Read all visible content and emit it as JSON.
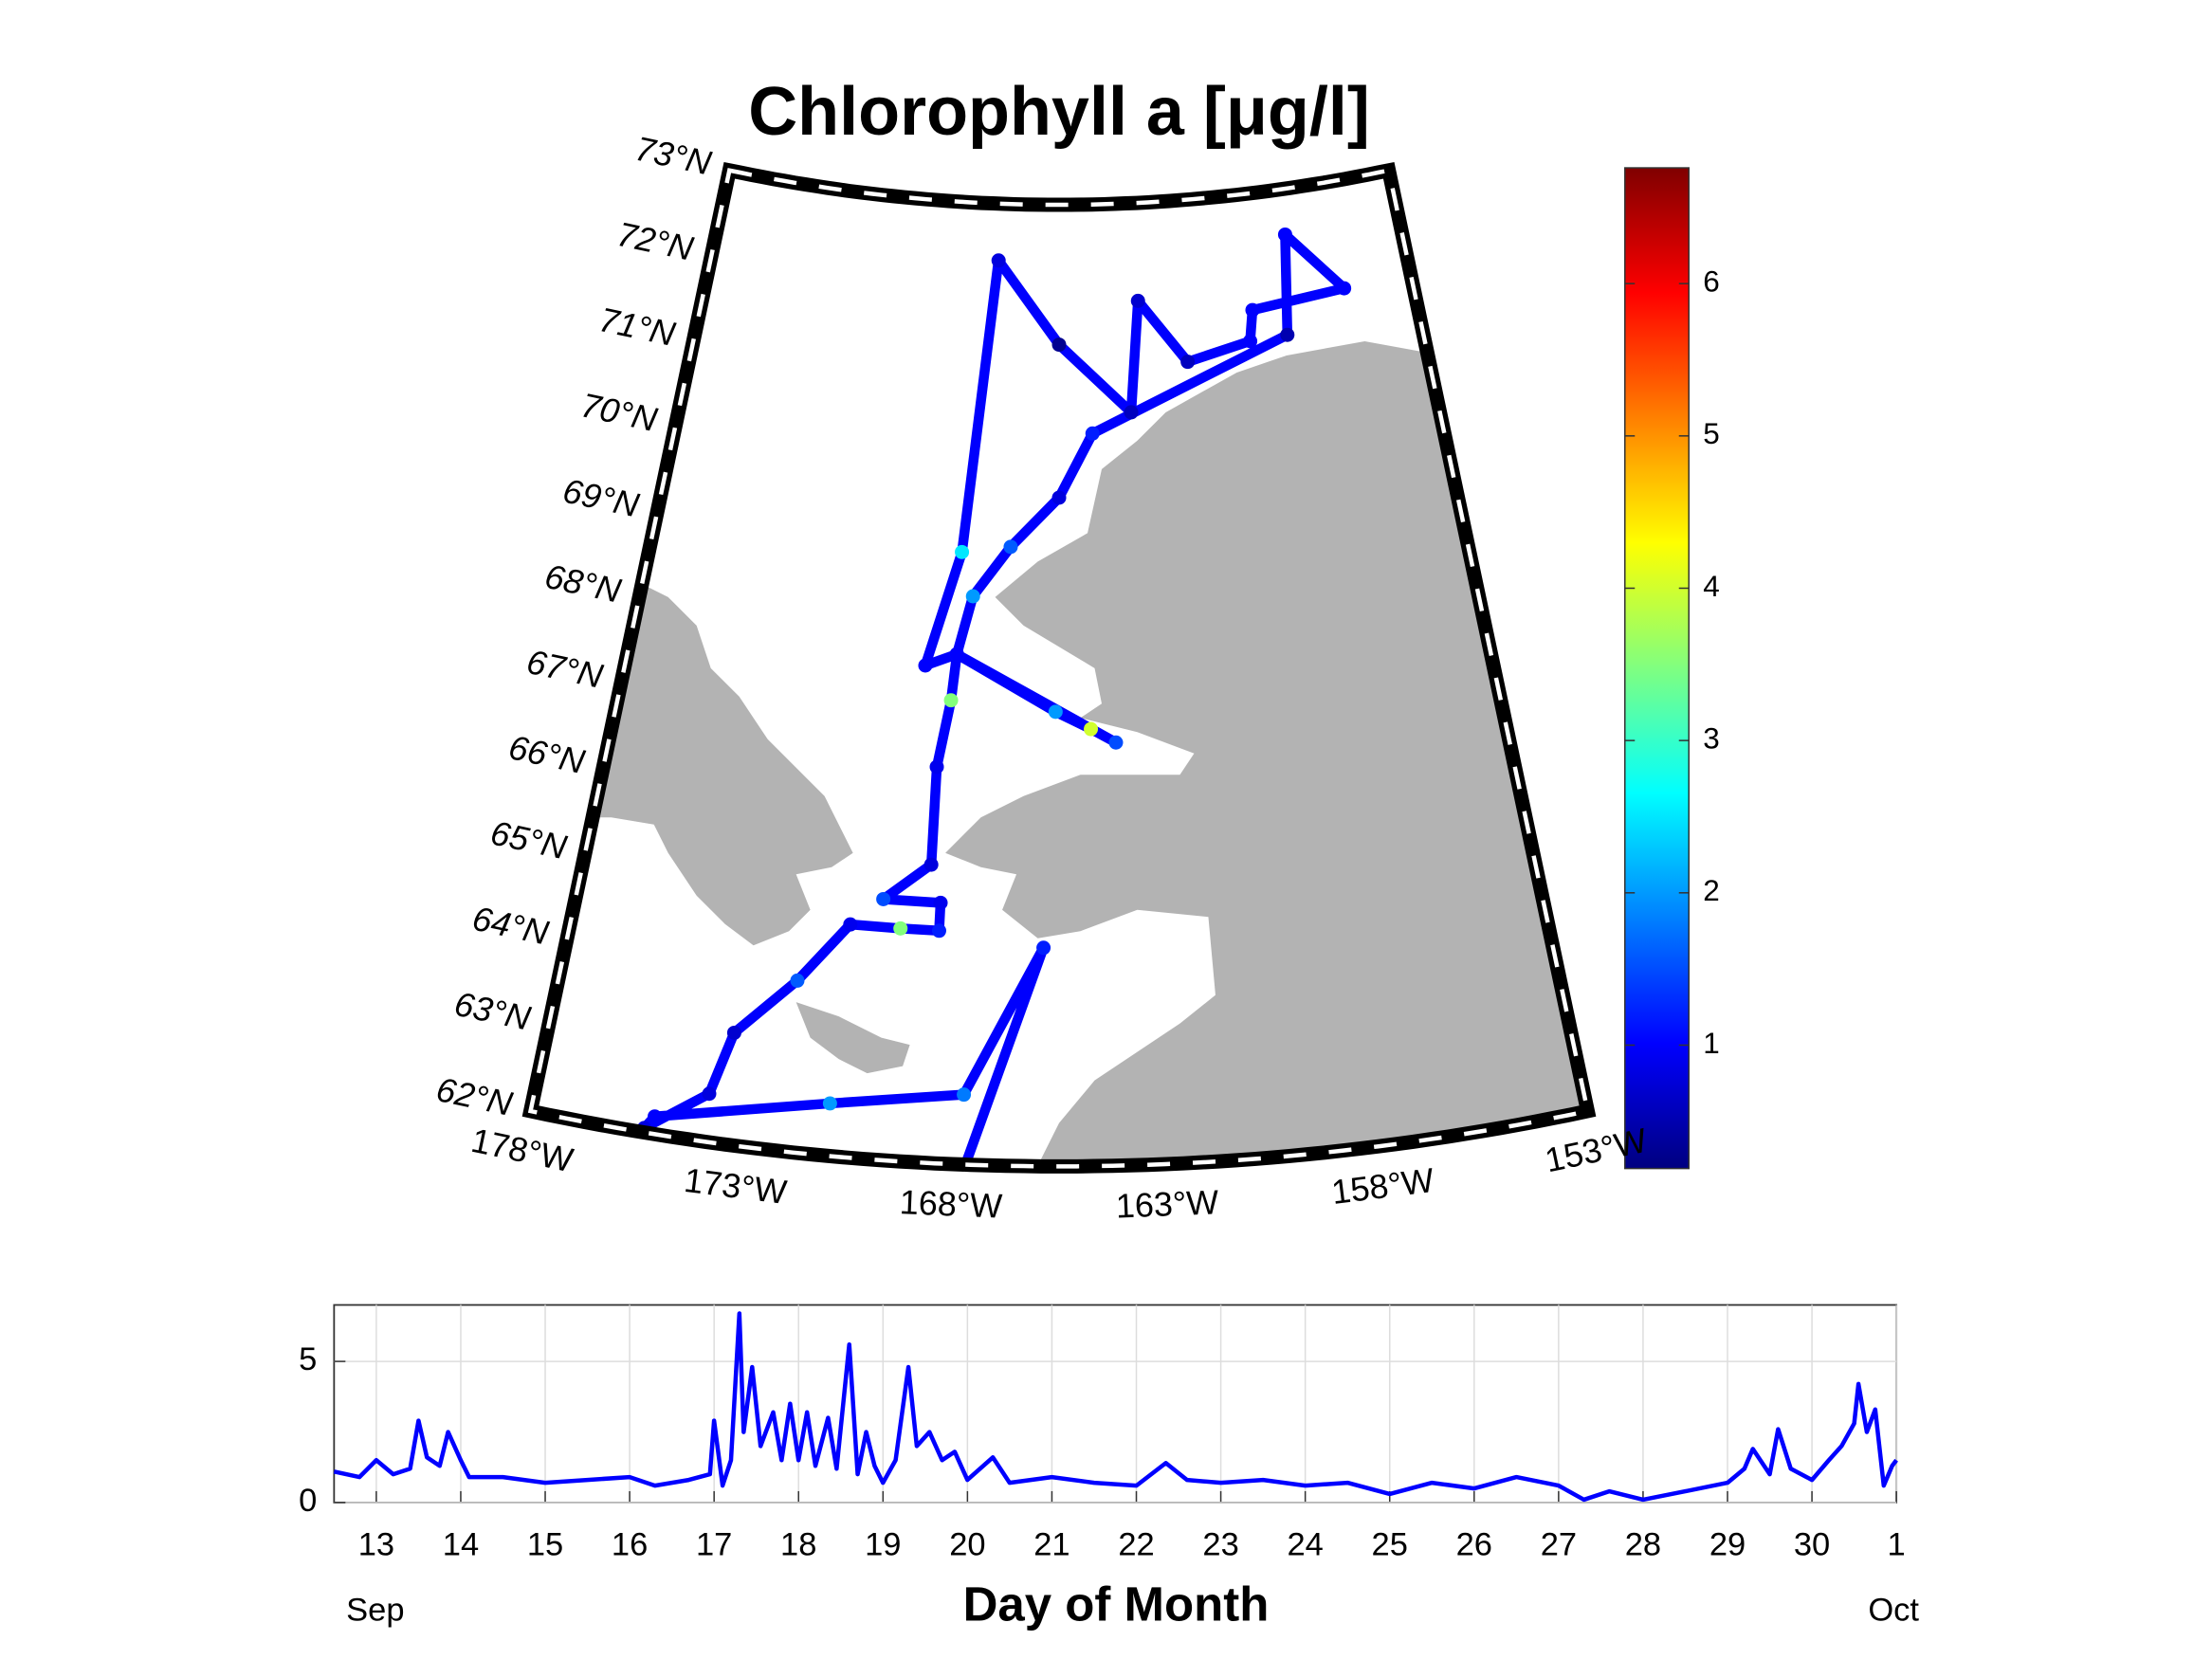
{
  "chart_data": [
    {
      "type": "map",
      "title": "Chlorophyll a [μg/l]",
      "lonlim": [
        -178,
        -153
      ],
      "latlim": [
        62,
        73
      ],
      "lonticks": [
        {
          "value": -178,
          "label": "178°W"
        },
        {
          "value": -173,
          "label": "173°W"
        },
        {
          "value": -168,
          "label": "168°W"
        },
        {
          "value": -163,
          "label": "163°W"
        },
        {
          "value": -158,
          "label": "158°W"
        },
        {
          "value": -153,
          "label": "153°W"
        }
      ],
      "latticks": [
        {
          "value": 62,
          "label": "62°N"
        },
        {
          "value": 63,
          "label": "63°N"
        },
        {
          "value": 64,
          "label": "64°N"
        },
        {
          "value": 65,
          "label": "65°N"
        },
        {
          "value": 66,
          "label": "66°N"
        },
        {
          "value": 67,
          "label": "67°N"
        },
        {
          "value": 68,
          "label": "68°N"
        },
        {
          "value": 69,
          "label": "69°N"
        },
        {
          "value": 70,
          "label": "70°N"
        },
        {
          "value": 71,
          "label": "71°N"
        },
        {
          "value": 72,
          "label": "72°N"
        },
        {
          "value": 73,
          "label": "73°N"
        }
      ],
      "land_color": "#b3b3b3",
      "track": {
        "lon": [
          -167.7,
          -165.9,
          -167.8,
          -171.0,
          -175.1,
          -175.3,
          -173.9,
          -173.5,
          -172.1,
          -170.9,
          -169.6,
          -168.6,
          -168.6,
          -170.1,
          -168.9,
          -168.9,
          -168.6,
          -168.5,
          -165.6,
          -164.6,
          -163.9,
          -168.5,
          -169.4,
          -168.5,
          -167.7,
          -165.5,
          -163.1,
          -162.7,
          -161.1,
          -158.9,
          -158.7,
          -155.4,
          -157.2,
          -157.6,
          -164.4,
          -165.5,
          -167.0,
          -168.1,
          -168.5
        ],
        "lat": [
          62.0,
          64.5,
          62.8,
          62.6,
          62.2,
          62.05,
          62.55,
          63.28,
          63.96,
          64.66,
          64.66,
          64.66,
          64.98,
          64.98,
          65.41,
          66.53,
          67.3,
          67.83,
          67.2,
          67.0,
          66.84,
          67.83,
          67.68,
          69.0,
          72.35,
          71.4,
          70.61,
          71.88,
          71.15,
          71.32,
          71.67,
          71.77,
          72.48,
          71.34,
          70.38,
          69.65,
          69.08,
          68.5,
          67.83
        ],
        "values": [
          1.0,
          1.2,
          1.8,
          2.0,
          1.0,
          0.8,
          0.8,
          0.7,
          1.6,
          0.9,
          3.5,
          1.2,
          0.9,
          1.5,
          0.8,
          0.9,
          3.5,
          1.0,
          2.0,
          4.0,
          1.5,
          1.2,
          1.0,
          2.5,
          0.8,
          0.3,
          0.6,
          0.7,
          0.6,
          1.0,
          1.0,
          1.0,
          1.0,
          0.5,
          1.2,
          0.8,
          1.6,
          2.0,
          1.0
        ]
      },
      "colormap": "jet",
      "clim": [
        0.19,
        6.76
      ],
      "colorbar_ticks": [
        1,
        2,
        3,
        4,
        5,
        6
      ]
    },
    {
      "type": "line",
      "xlabel": "Day of Month",
      "month_labels": [
        "Sep",
        "Oct"
      ],
      "x": [
        12.5,
        12.8,
        13.0,
        13.2,
        13.4,
        13.5,
        13.6,
        13.75,
        13.85,
        14.0,
        14.1,
        14.5,
        15.0,
        15.5,
        16.0,
        16.3,
        16.7,
        16.95,
        17.0,
        17.1,
        17.2,
        17.3,
        17.35,
        17.45,
        17.55,
        17.7,
        17.8,
        17.9,
        18.0,
        18.1,
        18.2,
        18.35,
        18.45,
        18.6,
        18.7,
        18.8,
        18.9,
        19.0,
        19.15,
        19.3,
        19.4,
        19.55,
        19.7,
        19.85,
        20.0,
        20.3,
        20.5,
        21.0,
        21.5,
        22.0,
        22.35,
        22.6,
        23.0,
        23.5,
        24.0,
        24.5,
        25.0,
        25.5,
        26.0,
        26.5,
        27.0,
        27.3,
        27.6,
        28.0,
        28.5,
        29.0,
        29.2,
        29.3,
        29.5,
        29.6,
        29.75,
        30.0,
        30.2,
        30.35,
        30.5,
        30.55,
        30.65,
        30.75,
        30.85,
        30.95,
        31.0
      ],
      "series": [
        {
          "color": "#0000ff",
          "values": [
            1.1,
            0.9,
            1.5,
            1.0,
            1.2,
            2.9,
            1.6,
            1.3,
            2.5,
            1.5,
            0.9,
            0.9,
            0.7,
            0.8,
            0.9,
            0.6,
            0.8,
            1.0,
            2.9,
            0.6,
            1.5,
            6.7,
            2.5,
            4.8,
            2.0,
            3.2,
            1.5,
            3.5,
            1.5,
            3.2,
            1.3,
            3.0,
            1.2,
            5.6,
            1.0,
            2.5,
            1.3,
            0.7,
            1.5,
            4.8,
            2.0,
            2.5,
            1.5,
            1.8,
            0.8,
            1.6,
            0.7,
            0.9,
            0.7,
            0.6,
            1.4,
            0.8,
            0.7,
            0.8,
            0.6,
            0.7,
            0.3,
            0.7,
            0.5,
            0.9,
            0.6,
            0.1,
            0.4,
            0.1,
            0.4,
            0.7,
            1.2,
            1.9,
            1.0,
            2.6,
            1.2,
            0.8,
            1.5,
            2.0,
            2.8,
            4.2,
            2.5,
            3.3,
            0.6,
            1.3,
            1.5
          ]
        }
      ],
      "xlim": [
        12.5,
        31
      ],
      "xticks": [
        13,
        14,
        15,
        16,
        17,
        18,
        19,
        20,
        21,
        22,
        23,
        24,
        25,
        26,
        27,
        28,
        29,
        30,
        {
          "value": 31,
          "label": "1"
        }
      ],
      "ylim": [
        0,
        7
      ],
      "yticks": [
        0,
        5
      ],
      "grid": true
    }
  ]
}
